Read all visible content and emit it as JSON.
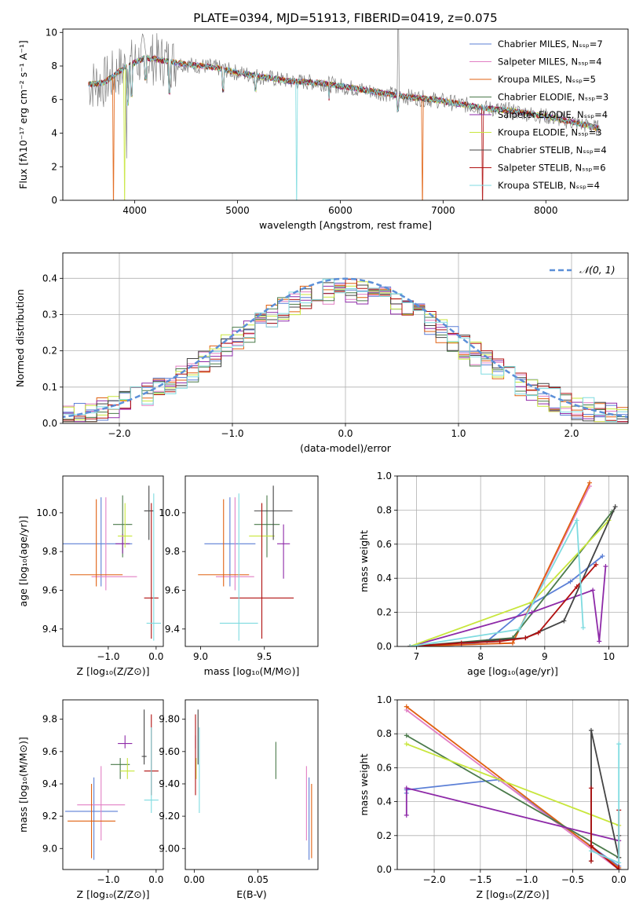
{
  "title": "PLATE=0394, MJD=51913, FIBERID=0419, z=0.075",
  "colors": {
    "chabrier_miles": "#5b7fd6",
    "salpeter_miles": "#e27fc4",
    "kroupa_miles": "#e06010",
    "chabrier_elodie": "#4a7a4a",
    "salpeter_elodie": "#8e2aa8",
    "kroupa_elodie": "#c8e63c",
    "chabrier_stelib": "#444444",
    "salpeter_stelib": "#b01010",
    "kroupa_stelib": "#7fdbe0"
  },
  "chart_data": [
    {
      "id": "spectrum",
      "type": "line",
      "xlabel": "wavelength [Angstrom, rest frame]",
      "ylabel": "Flux [fλ10⁻¹⁷ erg cm⁻² s⁻¹ A⁻¹]",
      "xlim": [
        3300,
        8800
      ],
      "ylim": [
        0,
        10.2
      ],
      "xticks": [
        4000,
        5000,
        6000,
        7000,
        8000
      ],
      "yticks": [
        0,
        2,
        4,
        6,
        8,
        10
      ],
      "legend_position": "top-right",
      "legend": [
        "Chabrier MILES, Nₛₛₚ=7",
        "Salpeter MILES, Nₛₛₚ=4",
        "Kroupa MILES, Nₛₛₚ=5",
        "Chabrier ELODIE, Nₛₛₚ=3",
        "Salpeter ELODIE, Nₛₛₚ=4",
        "Kroupa ELODIE, Nₛₛₚ=3",
        "Chabrier STELIB, Nₛₛₚ=4",
        "Salpeter STELIB, Nₛₛₚ=6",
        "Kroupa STELIB, Nₛₛₚ=4"
      ],
      "data_trend": {
        "x": [
          3550,
          3700,
          3900,
          4100,
          4300,
          4500,
          4800,
          5000,
          5200,
          5500,
          5800,
          6000,
          6300,
          6600,
          6900,
          7100,
          7400,
          7700,
          8000,
          8300,
          8500
        ],
        "y": [
          6.9,
          7.0,
          7.9,
          8.5,
          8.3,
          8.1,
          7.9,
          7.6,
          7.4,
          7.1,
          7.0,
          6.8,
          6.5,
          6.2,
          6.0,
          5.8,
          5.5,
          5.3,
          5.0,
          4.6,
          4.3
        ]
      }
    },
    {
      "id": "residuals",
      "type": "histogram",
      "xlabel": "(data-model)/error",
      "ylabel": "Normed distribution",
      "xlim": [
        -2.5,
        2.5
      ],
      "ylim": [
        0,
        0.47
      ],
      "xticks": [
        -2,
        -1,
        0,
        1,
        2
      ],
      "yticks": [
        0.0,
        0.1,
        0.2,
        0.3,
        0.4
      ],
      "legend_position": "top-right",
      "legend": [
        "𝒩(0, 1)"
      ],
      "grid": true,
      "reference_curve": "normal(0,1)"
    },
    {
      "id": "age_vs_Z",
      "type": "errorbar",
      "xlabel": "Z [log₁₀(Z/Z⊙)]",
      "ylabel": "age  [log₁₀(age/yr)]",
      "xlim": [
        -1.95,
        0.15
      ],
      "ylim": [
        9.31,
        10.19
      ],
      "xticks": [
        -1,
        0
      ],
      "yticks": [
        9.4,
        9.6,
        9.8,
        10.0
      ],
      "series": [
        {
          "name": "Chabrier MILES",
          "x": -1.15,
          "y": 9.84,
          "xerr": [
            0.8,
            0.65
          ],
          "yerr": [
            0.22,
            0.24
          ]
        },
        {
          "name": "Salpeter MILES",
          "x": -1.05,
          "y": 9.67,
          "xerr": [
            0.3,
            0.65
          ],
          "yerr": [
            0.07,
            0.41
          ]
        },
        {
          "name": "Kroupa MILES",
          "x": -1.25,
          "y": 9.68,
          "xerr": [
            0.55,
            0.55
          ],
          "yerr": [
            0.06,
            0.39
          ]
        },
        {
          "name": "Chabrier ELODIE",
          "x": -0.7,
          "y": 9.94,
          "xerr": [
            0.2,
            0.2
          ],
          "yerr": [
            0.17,
            0.15
          ]
        },
        {
          "name": "Salpeter ELODIE",
          "x": -0.7,
          "y": 9.84,
          "xerr": [
            0.15,
            0.15
          ],
          "yerr": [
            0.05,
            0.05
          ]
        },
        {
          "name": "Kroupa ELODIE",
          "x": -0.65,
          "y": 9.88,
          "xerr": [
            0.15,
            0.15
          ],
          "yerr": [
            0.06,
            0.17
          ]
        },
        {
          "name": "Chabrier STELIB",
          "x": -0.15,
          "y": 10.01,
          "xerr": [
            0.1,
            0.1
          ],
          "yerr": [
            0.15,
            0.13
          ]
        },
        {
          "name": "Salpeter STELIB",
          "x": -0.1,
          "y": 9.56,
          "xerr": [
            0.15,
            0.15
          ],
          "yerr": [
            0.21,
            0.49
          ]
        },
        {
          "name": "Kroupa STELIB",
          "x": -0.05,
          "y": 9.43,
          "xerr": [
            0.15,
            0.15
          ],
          "yerr": [
            0.09,
            0.67
          ]
        }
      ]
    },
    {
      "id": "age_vs_mass",
      "type": "errorbar",
      "xlabel": "mass [log₁₀(M/M⊙)]",
      "xlim": [
        8.88,
        9.92
      ],
      "ylim": [
        9.31,
        10.19
      ],
      "xticks": [
        9.0,
        9.5
      ],
      "yticks": [
        9.4,
        9.6,
        9.8,
        10.0
      ],
      "series": [
        {
          "name": "Chabrier MILES",
          "x": 9.23,
          "y": 9.84,
          "xerr": [
            0.2,
            0.2
          ],
          "yerr": [
            0.22,
            0.24
          ]
        },
        {
          "name": "Salpeter MILES",
          "x": 9.27,
          "y": 9.67,
          "xerr": [
            0.15,
            0.15
          ],
          "yerr": [
            0.07,
            0.41
          ]
        },
        {
          "name": "Kroupa MILES",
          "x": 9.18,
          "y": 9.68,
          "xerr": [
            0.2,
            0.2
          ],
          "yerr": [
            0.06,
            0.39
          ]
        },
        {
          "name": "Chabrier ELODIE",
          "x": 9.52,
          "y": 9.94,
          "xerr": [
            0.1,
            0.1
          ],
          "yerr": [
            0.17,
            0.15
          ]
        },
        {
          "name": "Salpeter ELODIE",
          "x": 9.65,
          "y": 9.84,
          "xerr": [
            0.05,
            0.05
          ],
          "yerr": [
            0.18,
            0.1
          ]
        },
        {
          "name": "Kroupa ELODIE",
          "x": 9.48,
          "y": 9.88,
          "xerr": [
            0.1,
            0.1
          ],
          "yerr": [
            0.06,
            0.17
          ]
        },
        {
          "name": "Chabrier STELIB",
          "x": 9.57,
          "y": 10.01,
          "xerr": [
            0.15,
            0.15
          ],
          "yerr": [
            0.15,
            0.13
          ]
        },
        {
          "name": "Salpeter STELIB",
          "x": 9.48,
          "y": 9.56,
          "xerr": [
            0.25,
            0.25
          ],
          "yerr": [
            0.21,
            0.49
          ]
        },
        {
          "name": "Kroupa STELIB",
          "x": 9.3,
          "y": 9.43,
          "xerr": [
            0.15,
            0.15
          ],
          "yerr": [
            0.09,
            0.67
          ]
        }
      ]
    },
    {
      "id": "weight_vs_age",
      "type": "line",
      "xlabel": "age  [log₁₀(age/yr)]",
      "ylabel": "mass weight",
      "xlim": [
        6.7,
        10.3
      ],
      "ylim": [
        0,
        1
      ],
      "xticks": [
        7,
        8,
        9,
        10
      ],
      "yticks": [
        0.0,
        0.2,
        0.4,
        0.6,
        0.8,
        1.0
      ],
      "grid": true,
      "series": [
        {
          "name": "Chabrier MILES",
          "x": [
            6.9,
            7.7,
            8.1,
            8.8,
            9.4,
            9.9
          ],
          "y": [
            0.0,
            0.01,
            0.03,
            0.25,
            0.38,
            0.53
          ]
        },
        {
          "name": "Salpeter MILES",
          "x": [
            6.9,
            8.5,
            9.7
          ],
          "y": [
            0.0,
            0.02,
            0.94
          ]
        },
        {
          "name": "Kroupa MILES",
          "x": [
            6.9,
            8.5,
            9.7
          ],
          "y": [
            0.0,
            0.02,
            0.96
          ]
        },
        {
          "name": "Chabrier ELODIE",
          "x": [
            6.9,
            8.5,
            10.05
          ],
          "y": [
            0.0,
            0.05,
            0.79
          ]
        },
        {
          "name": "Salpeter ELODIE",
          "x": [
            6.9,
            8.8,
            9.75,
            9.85,
            9.95
          ],
          "y": [
            0.0,
            0.2,
            0.33,
            0.03,
            0.47
          ]
        },
        {
          "name": "Kroupa ELODIE",
          "x": [
            6.9,
            8.8,
            10.0
          ],
          "y": [
            0.0,
            0.26,
            0.74
          ]
        },
        {
          "name": "Chabrier STELIB",
          "x": [
            6.9,
            8.7,
            9.3,
            10.1
          ],
          "y": [
            0.0,
            0.05,
            0.15,
            0.82
          ]
        },
        {
          "name": "Salpeter STELIB",
          "x": [
            6.9,
            7.7,
            8.3,
            8.7,
            8.9,
            9.5,
            9.8
          ],
          "y": [
            0.0,
            0.02,
            0.03,
            0.05,
            0.08,
            0.35,
            0.48
          ]
        },
        {
          "name": "Kroupa STELIB",
          "x": [
            6.9,
            8.6,
            9.5,
            9.6
          ],
          "y": [
            0.0,
            0.1,
            0.74,
            0.11
          ]
        }
      ]
    },
    {
      "id": "mass_vs_Z",
      "type": "errorbar",
      "xlabel": "Z [log₁₀(Z/Z⊙)]",
      "ylabel": "mass [log₁₀(M/M⊙)]",
      "xlim": [
        -1.95,
        0.15
      ],
      "ylim": [
        8.87,
        9.92
      ],
      "xticks": [
        -1,
        0
      ],
      "yticks": [
        9.0,
        9.2,
        9.4,
        9.6,
        9.8
      ],
      "series": [
        {
          "name": "Chabrier MILES",
          "x": -1.3,
          "y": 9.23,
          "xerr": [
            0.6,
            0.5
          ],
          "yerr": [
            0.3,
            0.21
          ]
        },
        {
          "name": "Salpeter MILES",
          "x": -1.15,
          "y": 9.27,
          "xerr": [
            0.5,
            0.5
          ],
          "yerr": [
            0.22,
            0.24
          ]
        },
        {
          "name": "Kroupa MILES",
          "x": -1.35,
          "y": 9.17,
          "xerr": [
            0.5,
            0.5
          ],
          "yerr": [
            0.23,
            0.23
          ]
        },
        {
          "name": "Chabrier ELODIE",
          "x": -0.75,
          "y": 9.52,
          "xerr": [
            0.2,
            0.2
          ],
          "yerr": [
            0.09,
            0.04
          ]
        },
        {
          "name": "Salpeter ELODIE",
          "x": -0.65,
          "y": 9.65,
          "xerr": [
            0.15,
            0.15
          ],
          "yerr": [
            0.03,
            0.05
          ]
        },
        {
          "name": "Kroupa ELODIE",
          "x": -0.6,
          "y": 9.48,
          "xerr": [
            0.15,
            0.15
          ],
          "yerr": [
            0.05,
            0.08
          ]
        },
        {
          "name": "Chabrier STELIB",
          "x": -0.25,
          "y": 9.57,
          "xerr": [
            0.05,
            0.05
          ],
          "yerr": [
            0.05,
            0.29
          ]
        },
        {
          "name": "Salpeter STELIB",
          "x": -0.1,
          "y": 9.48,
          "xerr": [
            0.15,
            0.15
          ],
          "yerr": [
            0.15,
            0.35
          ]
        },
        {
          "name": "Kroupa STELIB",
          "x": -0.1,
          "y": 9.3,
          "xerr": [
            0.15,
            0.15
          ],
          "yerr": [
            0.08,
            0.45
          ]
        }
      ]
    },
    {
      "id": "mass_vs_ebv",
      "type": "errorbar",
      "xlabel": "E(B-V)",
      "xlim": [
        -0.007,
        0.097
      ],
      "ylim": [
        8.87,
        9.92
      ],
      "xticks": [
        0.0,
        0.05
      ],
      "yticks": [
        9.0,
        9.2,
        9.4,
        9.6,
        9.8
      ],
      "series": [
        {
          "name": "Chabrier MILES",
          "x": 0.09,
          "y": 9.23,
          "xerr": [
            0,
            0
          ],
          "yerr": [
            0.3,
            0.21
          ]
        },
        {
          "name": "Salpeter MILES",
          "x": 0.088,
          "y": 9.27,
          "xerr": [
            0,
            0
          ],
          "yerr": [
            0.22,
            0.24
          ]
        },
        {
          "name": "Kroupa MILES",
          "x": 0.092,
          "y": 9.17,
          "xerr": [
            0,
            0
          ],
          "yerr": [
            0.23,
            0.23
          ]
        },
        {
          "name": "Chabrier ELODIE",
          "x": 0.064,
          "y": 9.52,
          "xerr": [
            0,
            0
          ],
          "yerr": [
            0.09,
            0.14
          ]
        },
        {
          "name": "Salpeter ELODIE",
          "x": 0.001,
          "y": 9.65,
          "xerr": [
            0,
            0
          ],
          "yerr": [
            0.03,
            0.05
          ]
        },
        {
          "name": "Kroupa ELODIE",
          "x": 0.0015,
          "y": 9.48,
          "xerr": [
            0,
            0
          ],
          "yerr": [
            0.05,
            0.08
          ]
        },
        {
          "name": "Chabrier STELIB",
          "x": 0.003,
          "y": 9.57,
          "xerr": [
            0,
            0
          ],
          "yerr": [
            0.05,
            0.29
          ]
        },
        {
          "name": "Salpeter STELIB",
          "x": 0.001,
          "y": 9.48,
          "xerr": [
            0,
            0
          ],
          "yerr": [
            0.15,
            0.35
          ]
        },
        {
          "name": "Kroupa STELIB",
          "x": 0.004,
          "y": 9.3,
          "xerr": [
            0,
            0
          ],
          "yerr": [
            0.08,
            0.45
          ]
        }
      ]
    },
    {
      "id": "weight_vs_Z",
      "type": "line",
      "xlabel": "Z [log₁₀(Z/Z⊙)]",
      "ylabel": "mass weight",
      "xlim": [
        -2.4,
        0.1
      ],
      "ylim": [
        0,
        1
      ],
      "xticks": [
        -2.0,
        -1.5,
        -1.0,
        -0.5,
        0.0
      ],
      "yticks": [
        0.0,
        0.2,
        0.4,
        0.6,
        0.8,
        1.0
      ],
      "grid": true,
      "series": [
        {
          "name": "Chabrier MILES",
          "x": [
            -2.3,
            -2.3,
            -1.3,
            0.0,
            0.0
          ],
          "y": [
            0.45,
            0.47,
            0.53,
            0.02,
            0.0
          ]
        },
        {
          "name": "Salpeter MILES",
          "x": [
            -2.3,
            0.0
          ],
          "y": [
            0.94,
            0.0
          ]
        },
        {
          "name": "Kroupa MILES",
          "x": [
            -2.3,
            0.0
          ],
          "y": [
            0.96,
            0.01
          ]
        },
        {
          "name": "Chabrier ELODIE",
          "x": [
            -2.3,
            0.0
          ],
          "y": [
            0.79,
            0.07
          ]
        },
        {
          "name": "Salpeter ELODIE",
          "x": [
            -2.3,
            -2.3,
            0.0
          ],
          "y": [
            0.32,
            0.48,
            0.17
          ]
        },
        {
          "name": "Kroupa ELODIE",
          "x": [
            -2.3,
            0.0
          ],
          "y": [
            0.74,
            0.26
          ]
        },
        {
          "name": "Chabrier STELIB",
          "x": [
            -0.3,
            -0.3,
            0.0,
            0.0
          ],
          "y": [
            0.05,
            0.82,
            0.07,
            0.2
          ]
        },
        {
          "name": "Salpeter STELIB",
          "x": [
            -0.3,
            -0.3,
            -0.3,
            0.0,
            0.0
          ],
          "y": [
            0.05,
            0.48,
            0.14,
            0.0,
            0.35
          ]
        },
        {
          "name": "Kroupa STELIB",
          "x": [
            -0.3,
            0.0,
            0.0
          ],
          "y": [
            0.11,
            0.04,
            0.74
          ]
        }
      ]
    }
  ]
}
